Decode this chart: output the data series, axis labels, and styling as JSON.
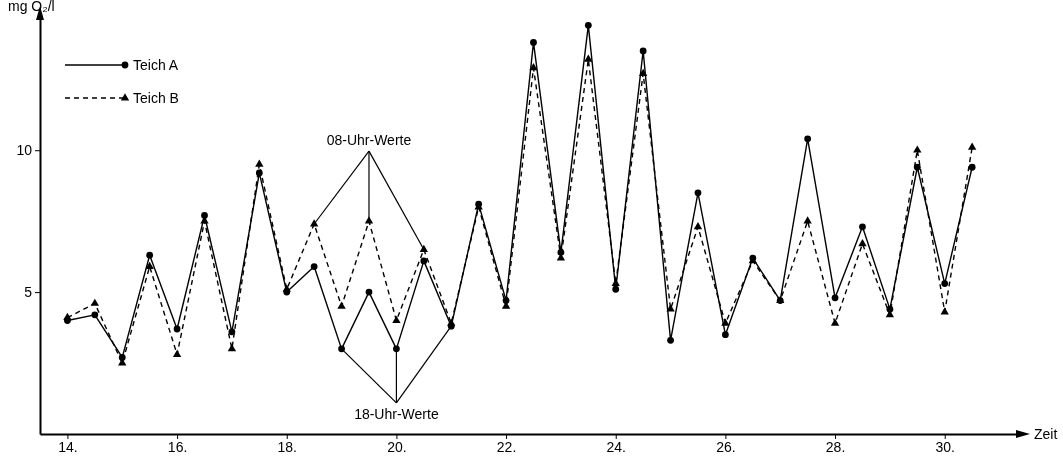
{
  "chart_data": {
    "type": "line",
    "xlabel": "Zeit",
    "ylabel": "mg O₂/l",
    "x": [
      14,
      14.5,
      15,
      15.5,
      16,
      16.5,
      17,
      17.5,
      18,
      18.5,
      19,
      19.5,
      20,
      20.5,
      21,
      21.5,
      22,
      22.5,
      23,
      23.5,
      24,
      24.5,
      25,
      25.5,
      26,
      26.5,
      27,
      27.5,
      28,
      28.5,
      29,
      29.5,
      30,
      30.5
    ],
    "series": [
      {
        "name": "Teich A",
        "color": "#000000",
        "marker": "circle",
        "line_style": "solid",
        "values": [
          4.0,
          4.2,
          2.7,
          6.3,
          3.7,
          7.7,
          3.6,
          9.2,
          5.0,
          5.9,
          3.0,
          5.0,
          3.0,
          6.1,
          3.8,
          8.1,
          4.7,
          13.8,
          6.4,
          14.4,
          5.1,
          13.5,
          3.3,
          8.5,
          3.5,
          6.2,
          4.7,
          10.4,
          4.8,
          7.3,
          4.4,
          9.4,
          5.3,
          9.4
        ]
      },
      {
        "name": "Teich B",
        "color": "#000000",
        "marker": "triangle",
        "line_style": "dashed",
        "values": [
          4.1,
          4.6,
          2.5,
          5.9,
          2.8,
          7.5,
          3.0,
          9.5,
          5.1,
          7.4,
          4.5,
          7.5,
          4.0,
          6.5,
          3.9,
          8.0,
          4.5,
          12.9,
          6.2,
          13.2,
          5.3,
          12.7,
          4.4,
          7.3,
          3.9,
          6.1,
          4.7,
          7.5,
          3.9,
          6.7,
          4.2,
          10.0,
          4.3,
          10.1
        ]
      }
    ],
    "xlim": [
      13.5,
      31.3
    ],
    "ylim": [
      0,
      14.8
    ],
    "xticks": [
      {
        "value": 14,
        "label": "14."
      },
      {
        "value": 16,
        "label": "16."
      },
      {
        "value": 18,
        "label": "18."
      },
      {
        "value": 20,
        "label": "20."
      },
      {
        "value": 22,
        "label": "22."
      },
      {
        "value": 24,
        "label": "24."
      },
      {
        "value": 26,
        "label": "26."
      },
      {
        "value": 28,
        "label": "28."
      },
      {
        "value": 30,
        "label": "30."
      }
    ],
    "yticks": [
      5,
      10
    ],
    "annotations": [
      {
        "text": "08-Uhr-Werte",
        "x": 19.5,
        "y": 7.5
      },
      {
        "text": "18-Uhr-Werte",
        "x": 20,
        "y": 3.0
      }
    ],
    "legend": "top left",
    "grid": false
  }
}
